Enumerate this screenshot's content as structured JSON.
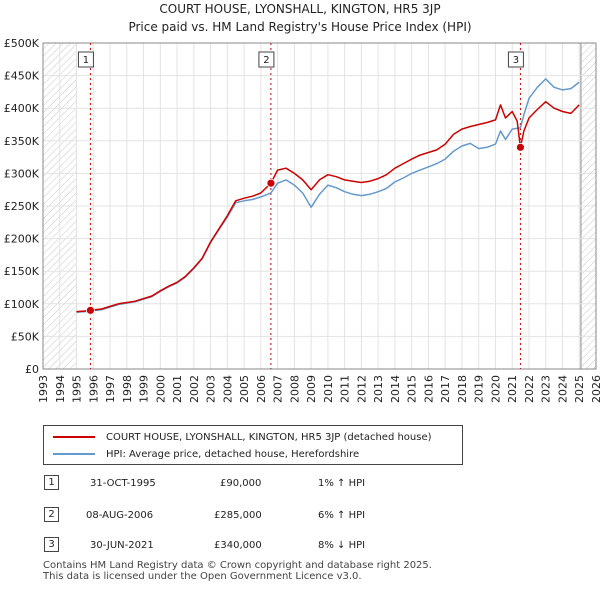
{
  "chart_data": {
    "type": "line",
    "title": "COURT HOUSE, LYONSHALL, KINGTON, HR5 3JP",
    "subtitle": "Price paid vs. HM Land Registry's House Price Index (HPI)",
    "xlim": [
      1993,
      2026
    ],
    "ylim": [
      0,
      500000
    ],
    "x_ticks": [
      "1993",
      "1994",
      "1995",
      "1996",
      "1997",
      "1998",
      "1999",
      "2000",
      "2001",
      "2002",
      "2003",
      "2004",
      "2005",
      "2006",
      "2007",
      "2008",
      "2009",
      "2010",
      "2011",
      "2012",
      "2013",
      "2014",
      "2015",
      "2016",
      "2017",
      "2018",
      "2019",
      "2020",
      "2021",
      "2022",
      "2023",
      "2024",
      "2025",
      "2026"
    ],
    "y_ticks": [
      {
        "value": 0,
        "label": "£0"
      },
      {
        "value": 50000,
        "label": "£50K"
      },
      {
        "value": 100000,
        "label": "£100K"
      },
      {
        "value": 150000,
        "label": "£150K"
      },
      {
        "value": 200000,
        "label": "£200K"
      },
      {
        "value": 250000,
        "label": "£250K"
      },
      {
        "value": 300000,
        "label": "£300K"
      },
      {
        "value": 350000,
        "label": "£350K"
      },
      {
        "value": 400000,
        "label": "£400K"
      },
      {
        "value": 450000,
        "label": "£450K"
      },
      {
        "value": 500000,
        "label": "£500K"
      }
    ],
    "hatched_ranges": [
      [
        1993,
        1995.0
      ],
      [
        2025.1,
        2026
      ]
    ],
    "series": [
      {
        "name": "COURT HOUSE, LYONSHALL, KINGTON, HR5 3JP (detached house)",
        "color": "#cc0000",
        "points": [
          [
            1995.0,
            88000
          ],
          [
            1995.5,
            89000
          ],
          [
            1995.83,
            90000
          ],
          [
            1996.5,
            92000
          ],
          [
            1997.0,
            96000
          ],
          [
            1997.5,
            100000
          ],
          [
            1998.0,
            102000
          ],
          [
            1998.5,
            104000
          ],
          [
            1999.0,
            108000
          ],
          [
            1999.5,
            112000
          ],
          [
            2000.0,
            120000
          ],
          [
            2000.5,
            127000
          ],
          [
            2001.0,
            133000
          ],
          [
            2001.5,
            142000
          ],
          [
            2002.0,
            155000
          ],
          [
            2002.5,
            170000
          ],
          [
            2003.0,
            195000
          ],
          [
            2003.5,
            215000
          ],
          [
            2004.0,
            235000
          ],
          [
            2004.5,
            258000
          ],
          [
            2005.0,
            262000
          ],
          [
            2005.5,
            265000
          ],
          [
            2006.0,
            270000
          ],
          [
            2006.6,
            285000
          ],
          [
            2007.0,
            305000
          ],
          [
            2007.5,
            308000
          ],
          [
            2008.0,
            300000
          ],
          [
            2008.5,
            290000
          ],
          [
            2009.0,
            275000
          ],
          [
            2009.5,
            290000
          ],
          [
            2010.0,
            298000
          ],
          [
            2010.5,
            295000
          ],
          [
            2011.0,
            290000
          ],
          [
            2011.5,
            288000
          ],
          [
            2012.0,
            286000
          ],
          [
            2012.5,
            288000
          ],
          [
            2013.0,
            292000
          ],
          [
            2013.5,
            298000
          ],
          [
            2014.0,
            308000
          ],
          [
            2014.5,
            315000
          ],
          [
            2015.0,
            322000
          ],
          [
            2015.5,
            328000
          ],
          [
            2016.0,
            332000
          ],
          [
            2016.5,
            336000
          ],
          [
            2017.0,
            345000
          ],
          [
            2017.5,
            360000
          ],
          [
            2018.0,
            368000
          ],
          [
            2018.5,
            372000
          ],
          [
            2019.0,
            375000
          ],
          [
            2019.5,
            378000
          ],
          [
            2020.0,
            382000
          ],
          [
            2020.3,
            405000
          ],
          [
            2020.6,
            385000
          ],
          [
            2021.0,
            395000
          ],
          [
            2021.3,
            380000
          ],
          [
            2021.49,
            340000
          ],
          [
            2021.7,
            365000
          ],
          [
            2022.0,
            385000
          ],
          [
            2022.5,
            398000
          ],
          [
            2023.0,
            410000
          ],
          [
            2023.5,
            400000
          ],
          [
            2024.0,
            395000
          ],
          [
            2024.5,
            392000
          ],
          [
            2025.0,
            405000
          ]
        ]
      },
      {
        "name": "HPI: Average price, detached house, Herefordshire",
        "color": "#6699cc",
        "points": [
          [
            1995.0,
            87000
          ],
          [
            1995.5,
            88000
          ],
          [
            1995.83,
            89000
          ],
          [
            1996.5,
            91000
          ],
          [
            1997.0,
            95000
          ],
          [
            1997.5,
            99000
          ],
          [
            1998.0,
            101000
          ],
          [
            1998.5,
            103000
          ],
          [
            1999.0,
            107000
          ],
          [
            1999.5,
            111000
          ],
          [
            2000.0,
            119000
          ],
          [
            2000.5,
            126000
          ],
          [
            2001.0,
            132000
          ],
          [
            2001.5,
            141000
          ],
          [
            2002.0,
            154000
          ],
          [
            2002.5,
            169000
          ],
          [
            2003.0,
            194000
          ],
          [
            2003.5,
            214000
          ],
          [
            2004.0,
            233000
          ],
          [
            2004.5,
            255000
          ],
          [
            2005.0,
            258000
          ],
          [
            2005.5,
            260000
          ],
          [
            2006.0,
            264000
          ],
          [
            2006.6,
            270000
          ],
          [
            2007.0,
            285000
          ],
          [
            2007.5,
            290000
          ],
          [
            2008.0,
            282000
          ],
          [
            2008.5,
            270000
          ],
          [
            2009.0,
            248000
          ],
          [
            2009.5,
            268000
          ],
          [
            2010.0,
            282000
          ],
          [
            2010.5,
            278000
          ],
          [
            2011.0,
            272000
          ],
          [
            2011.5,
            268000
          ],
          [
            2012.0,
            266000
          ],
          [
            2012.5,
            268000
          ],
          [
            2013.0,
            272000
          ],
          [
            2013.5,
            277000
          ],
          [
            2014.0,
            287000
          ],
          [
            2014.5,
            293000
          ],
          [
            2015.0,
            300000
          ],
          [
            2015.5,
            305000
          ],
          [
            2016.0,
            310000
          ],
          [
            2016.5,
            315000
          ],
          [
            2017.0,
            322000
          ],
          [
            2017.5,
            334000
          ],
          [
            2018.0,
            342000
          ],
          [
            2018.5,
            346000
          ],
          [
            2019.0,
            338000
          ],
          [
            2019.5,
            340000
          ],
          [
            2020.0,
            345000
          ],
          [
            2020.3,
            365000
          ],
          [
            2020.6,
            352000
          ],
          [
            2021.0,
            368000
          ],
          [
            2021.49,
            370000
          ],
          [
            2021.7,
            390000
          ],
          [
            2022.0,
            415000
          ],
          [
            2022.5,
            432000
          ],
          [
            2023.0,
            445000
          ],
          [
            2023.5,
            432000
          ],
          [
            2024.0,
            428000
          ],
          [
            2024.5,
            430000
          ],
          [
            2025.0,
            440000
          ]
        ]
      }
    ],
    "sales": [
      {
        "label": "1",
        "x": 1995.83,
        "y": 90000
      },
      {
        "label": "2",
        "x": 2006.6,
        "y": 285000
      },
      {
        "label": "3",
        "x": 2021.49,
        "y": 340000
      }
    ]
  },
  "legend": {
    "property_label": "COURT HOUSE, LYONSHALL, KINGTON, HR5 3JP (detached house)",
    "hpi_label": "HPI: Average price, detached house, Herefordshire",
    "property_color": "#cc0000",
    "hpi_color": "#6699cc"
  },
  "transactions": [
    {
      "num": "1",
      "date": "31-OCT-1995",
      "price": "£90,000",
      "hpi": "1% ↑ HPI"
    },
    {
      "num": "2",
      "date": "08-AUG-2006",
      "price": "£285,000",
      "hpi": "6% ↑ HPI"
    },
    {
      "num": "3",
      "date": "30-JUN-2021",
      "price": "£340,000",
      "hpi": "8% ↓ HPI"
    }
  ],
  "footer": {
    "line1": "Contains HM Land Registry data © Crown copyright and database right 2025.",
    "line2": "This data is licensed under the Open Government Licence v3.0."
  }
}
